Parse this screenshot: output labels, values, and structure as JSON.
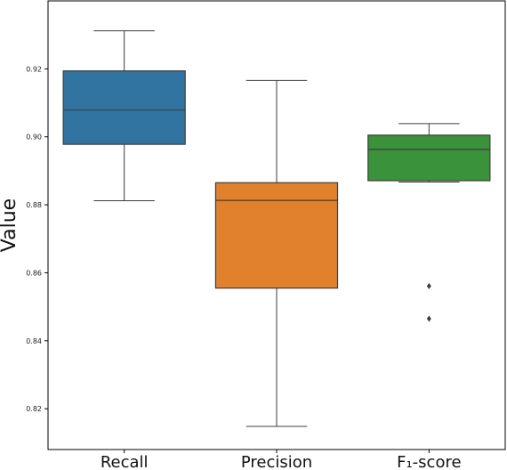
{
  "chart_data": {
    "type": "box",
    "ylabel": "Value",
    "ylim": [
      0.808,
      0.94
    ],
    "yticks": [
      "0.82",
      "0.84",
      "0.86",
      "0.88",
      "0.90",
      "0.92"
    ],
    "yticks_values": [
      0.82,
      0.84,
      0.86,
      0.88,
      0.9,
      0.92
    ],
    "categories": [
      "Recall",
      "Precision",
      "F₁-score"
    ],
    "boxes": [
      {
        "name": "Recall",
        "color": "#3274a1",
        "whisker_low": 0.8812,
        "q1": 0.8978,
        "median": 0.9079,
        "q3": 0.9194,
        "whisker_high": 0.9312,
        "outliers": []
      },
      {
        "name": "Precision",
        "color": "#e1812c",
        "whisker_low": 0.8148,
        "q1": 0.8555,
        "median": 0.8813,
        "q3": 0.8865,
        "whisker_high": 0.9166,
        "outliers": []
      },
      {
        "name": "F₁-score",
        "color": "#3a923a",
        "whisker_low": 0.8867,
        "q1": 0.8871,
        "median": 0.8963,
        "q3": 0.9005,
        "whisker_high": 0.9039,
        "outliers": [
          0.8561,
          0.8465
        ]
      }
    ],
    "grid": false,
    "legend": "none"
  }
}
